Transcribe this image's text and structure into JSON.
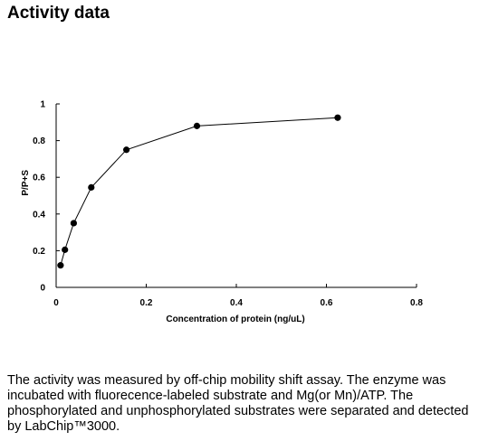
{
  "page": {
    "title": "Activity data",
    "caption": "The activity was measured by off-chip mobility shift assay. The enzyme was incubated with fluorecence-labeled  substrate and Mg(or Mn)/ATP. The phosphorylated and unphosphorylated substrates were separated and detected by LabChip™3000."
  },
  "chart_data": {
    "type": "scatter",
    "title": "",
    "xlabel": "Concentration of protein (ng/uL)",
    "ylabel": "P/P+S",
    "xlim": [
      0,
      0.8
    ],
    "ylim": [
      0,
      1
    ],
    "x_ticks": [
      0,
      0.2,
      0.4,
      0.6,
      0.8
    ],
    "x_tick_labels": [
      "0",
      "0.2",
      "0.4",
      "0.6",
      "0.8"
    ],
    "y_ticks": [
      0,
      0.2,
      0.4,
      0.6,
      0.8,
      1
    ],
    "y_tick_labels": [
      "0",
      "0.2",
      "0.4",
      "0.6",
      "0.8",
      "1"
    ],
    "grid": false,
    "connected": true,
    "series": [
      {
        "x": [
          0.0098,
          0.0195,
          0.039,
          0.078,
          0.156,
          0.3125,
          0.625
        ],
        "y": [
          0.12,
          0.205,
          0.35,
          0.545,
          0.75,
          0.88,
          0.925
        ]
      }
    ],
    "colors": {
      "line": "#000000",
      "marker": "#000000"
    }
  }
}
